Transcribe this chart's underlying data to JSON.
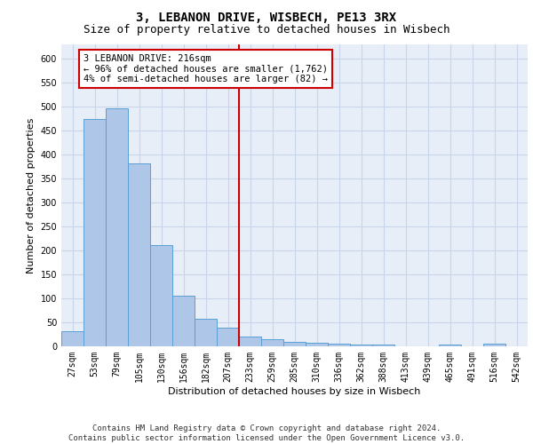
{
  "title": "3, LEBANON DRIVE, WISBECH, PE13 3RX",
  "subtitle": "Size of property relative to detached houses in Wisbech",
  "xlabel": "Distribution of detached houses by size in Wisbech",
  "ylabel": "Number of detached properties",
  "categories": [
    "27sqm",
    "53sqm",
    "79sqm",
    "105sqm",
    "130sqm",
    "156sqm",
    "182sqm",
    "207sqm",
    "233sqm",
    "259sqm",
    "285sqm",
    "310sqm",
    "336sqm",
    "362sqm",
    "388sqm",
    "413sqm",
    "439sqm",
    "465sqm",
    "491sqm",
    "516sqm",
    "542sqm"
  ],
  "values": [
    32,
    475,
    496,
    381,
    211,
    105,
    57,
    38,
    20,
    14,
    10,
    7,
    5,
    4,
    4,
    0,
    0,
    3,
    0,
    5,
    0
  ],
  "bar_color": "#aec6e8",
  "bar_edge_color": "#5a9fd4",
  "vline_x": 7.5,
  "vline_color": "#cc0000",
  "annotation_text": "3 LEBANON DRIVE: 216sqm\n← 96% of detached houses are smaller (1,762)\n4% of semi-detached houses are larger (82) →",
  "annotation_box_color": "#cc0000",
  "ylim": [
    0,
    630
  ],
  "yticks": [
    0,
    50,
    100,
    150,
    200,
    250,
    300,
    350,
    400,
    450,
    500,
    550,
    600
  ],
  "grid_color": "#c8d4e8",
  "background_color": "#e8eef8",
  "footer_line1": "Contains HM Land Registry data © Crown copyright and database right 2024.",
  "footer_line2": "Contains public sector information licensed under the Open Government Licence v3.0.",
  "title_fontsize": 10,
  "subtitle_fontsize": 9,
  "axis_label_fontsize": 8,
  "tick_fontsize": 7,
  "annotation_fontsize": 7.5,
  "footer_fontsize": 6.5
}
